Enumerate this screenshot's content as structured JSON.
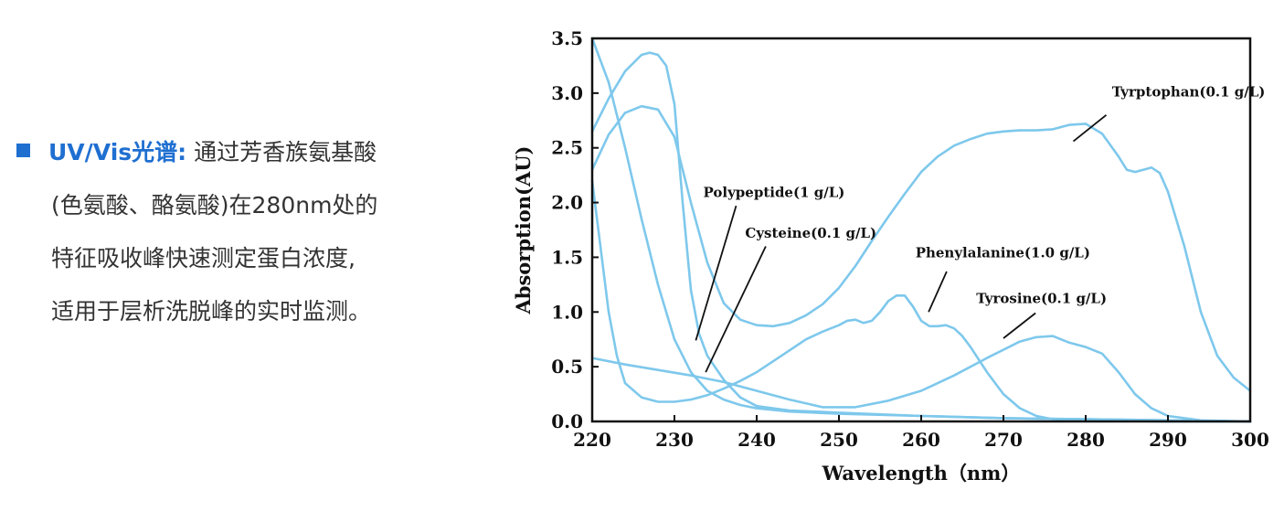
{
  "text_panel": {
    "heading": "UV/Vis光谱:",
    "lines": [
      "通过芳香族氨基酸",
      "(色氨酸、酪氨酸)在280nm处的",
      "特征吸收峰快速测定蛋白浓度,",
      "适用于层析洗脱峰的实时监测。"
    ],
    "accent_color": "#1f6fd1",
    "bullet_icon": "square-bullet-icon"
  },
  "chart_data": {
    "type": "line",
    "xlabel": "Wavelength（nm）",
    "ylabel": "Absorption(AU)",
    "xlim": [
      220,
      300
    ],
    "ylim": [
      0,
      3.5
    ],
    "x_ticks": [
      "220",
      "230",
      "240",
      "250",
      "260",
      "270",
      "280",
      "290",
      "300"
    ],
    "y_ticks": [
      "0.0",
      "0.5",
      "1.0",
      "1.5",
      "2.0",
      "2.5",
      "3.0",
      "3.5"
    ],
    "grid": false,
    "line_color": "#7ec8ec",
    "series": [
      {
        "name": "Tyrptophan(0.1 g/L)",
        "x": [
          220,
          222,
          224,
          226,
          228,
          230,
          232,
          234,
          236,
          238,
          240,
          242,
          244,
          246,
          248,
          250,
          252,
          254,
          256,
          258,
          260,
          262,
          264,
          266,
          268,
          270,
          272,
          274,
          276,
          278,
          280,
          282,
          284,
          285,
          286,
          287,
          288,
          289,
          290,
          292,
          294,
          296,
          298,
          300
        ],
        "values": [
          2.3,
          2.62,
          2.82,
          2.88,
          2.85,
          2.6,
          2.0,
          1.45,
          1.08,
          0.93,
          0.88,
          0.87,
          0.9,
          0.97,
          1.07,
          1.22,
          1.42,
          1.65,
          1.87,
          2.08,
          2.28,
          2.42,
          2.52,
          2.58,
          2.63,
          2.65,
          2.66,
          2.66,
          2.67,
          2.71,
          2.72,
          2.63,
          2.42,
          2.3,
          2.28,
          2.3,
          2.32,
          2.27,
          2.1,
          1.6,
          1.0,
          0.6,
          0.4,
          0.28
        ]
      },
      {
        "name": "Polypeptide(1 g/L)",
        "x": [
          220,
          222,
          224,
          226,
          227,
          228,
          229,
          230,
          231,
          232,
          233,
          234,
          236,
          238,
          240,
          244,
          250,
          260,
          270,
          280,
          290,
          300
        ],
        "values": [
          2.65,
          2.95,
          3.2,
          3.35,
          3.37,
          3.35,
          3.25,
          2.9,
          2.0,
          1.2,
          0.8,
          0.6,
          0.38,
          0.22,
          0.14,
          0.1,
          0.08,
          0.05,
          0.03,
          0.02,
          0.01,
          0.0
        ]
      },
      {
        "name": "Cysteine(0.1 g/L)",
        "x": [
          220,
          222,
          224,
          226,
          228,
          230,
          232,
          234,
          236,
          238,
          240,
          244,
          250,
          260,
          270,
          280,
          290,
          300
        ],
        "values": [
          3.5,
          3.1,
          2.5,
          1.85,
          1.25,
          0.75,
          0.45,
          0.28,
          0.2,
          0.15,
          0.12,
          0.09,
          0.07,
          0.05,
          0.03,
          0.02,
          0.01,
          0.0
        ]
      },
      {
        "name": "Phenylalanine(1.0 g/L)",
        "x": [
          220,
          221,
          222,
          223,
          224,
          226,
          228,
          230,
          232,
          234,
          236,
          238,
          240,
          242,
          244,
          246,
          248,
          250,
          251,
          252,
          253,
          254,
          255,
          256,
          257,
          258,
          259,
          260,
          261,
          262,
          263,
          264,
          265,
          266,
          268,
          270,
          272,
          274,
          276,
          280,
          290,
          300
        ],
        "values": [
          2.2,
          1.6,
          1.0,
          0.6,
          0.35,
          0.22,
          0.18,
          0.18,
          0.2,
          0.24,
          0.3,
          0.37,
          0.45,
          0.55,
          0.65,
          0.75,
          0.82,
          0.88,
          0.92,
          0.93,
          0.9,
          0.92,
          1.0,
          1.1,
          1.15,
          1.15,
          1.05,
          0.92,
          0.87,
          0.87,
          0.88,
          0.85,
          0.78,
          0.68,
          0.45,
          0.25,
          0.12,
          0.05,
          0.02,
          0.01,
          0.0,
          0.0
        ]
      },
      {
        "name": "Tyrosine(0.1 g/L)",
        "x": [
          220,
          224,
          228,
          232,
          236,
          240,
          244,
          248,
          252,
          256,
          260,
          264,
          268,
          272,
          274,
          276,
          278,
          280,
          282,
          284,
          286,
          288,
          290,
          294,
          300
        ],
        "values": [
          0.58,
          0.52,
          0.47,
          0.42,
          0.36,
          0.28,
          0.2,
          0.13,
          0.13,
          0.19,
          0.28,
          0.42,
          0.58,
          0.73,
          0.77,
          0.78,
          0.72,
          0.68,
          0.62,
          0.45,
          0.25,
          0.12,
          0.05,
          0.01,
          0.0
        ]
      }
    ],
    "annotations": [
      {
        "label": "Tyrptophan(0.1 g/L)",
        "text_at": [
          283.2,
          2.97
        ],
        "line_from": [
          282.5,
          2.8
        ],
        "line_to": [
          278.5,
          2.56
        ]
      },
      {
        "label": "Polypeptide(1 g/L)",
        "text_at": [
          233.5,
          2.05
        ],
        "line_from": [
          237.5,
          1.97
        ],
        "line_to": [
          232.6,
          0.74
        ]
      },
      {
        "label": "Cysteine(0.1 g/L)",
        "text_at": [
          238.6,
          1.68
        ],
        "line_from": [
          241.1,
          1.6
        ],
        "line_to": [
          233.8,
          0.45
        ]
      },
      {
        "label": "Phenylalanine(1.0 g/L)",
        "text_at": [
          259.3,
          1.5
        ],
        "line_from": [
          263.1,
          1.37
        ],
        "line_to": [
          260.9,
          1.0
        ]
      },
      {
        "label": "Tyrosine(0.1 g/L)",
        "text_at": [
          266.7,
          1.08
        ],
        "line_from": [
          273.9,
          0.99
        ],
        "line_to": [
          270.0,
          0.76
        ]
      }
    ]
  }
}
